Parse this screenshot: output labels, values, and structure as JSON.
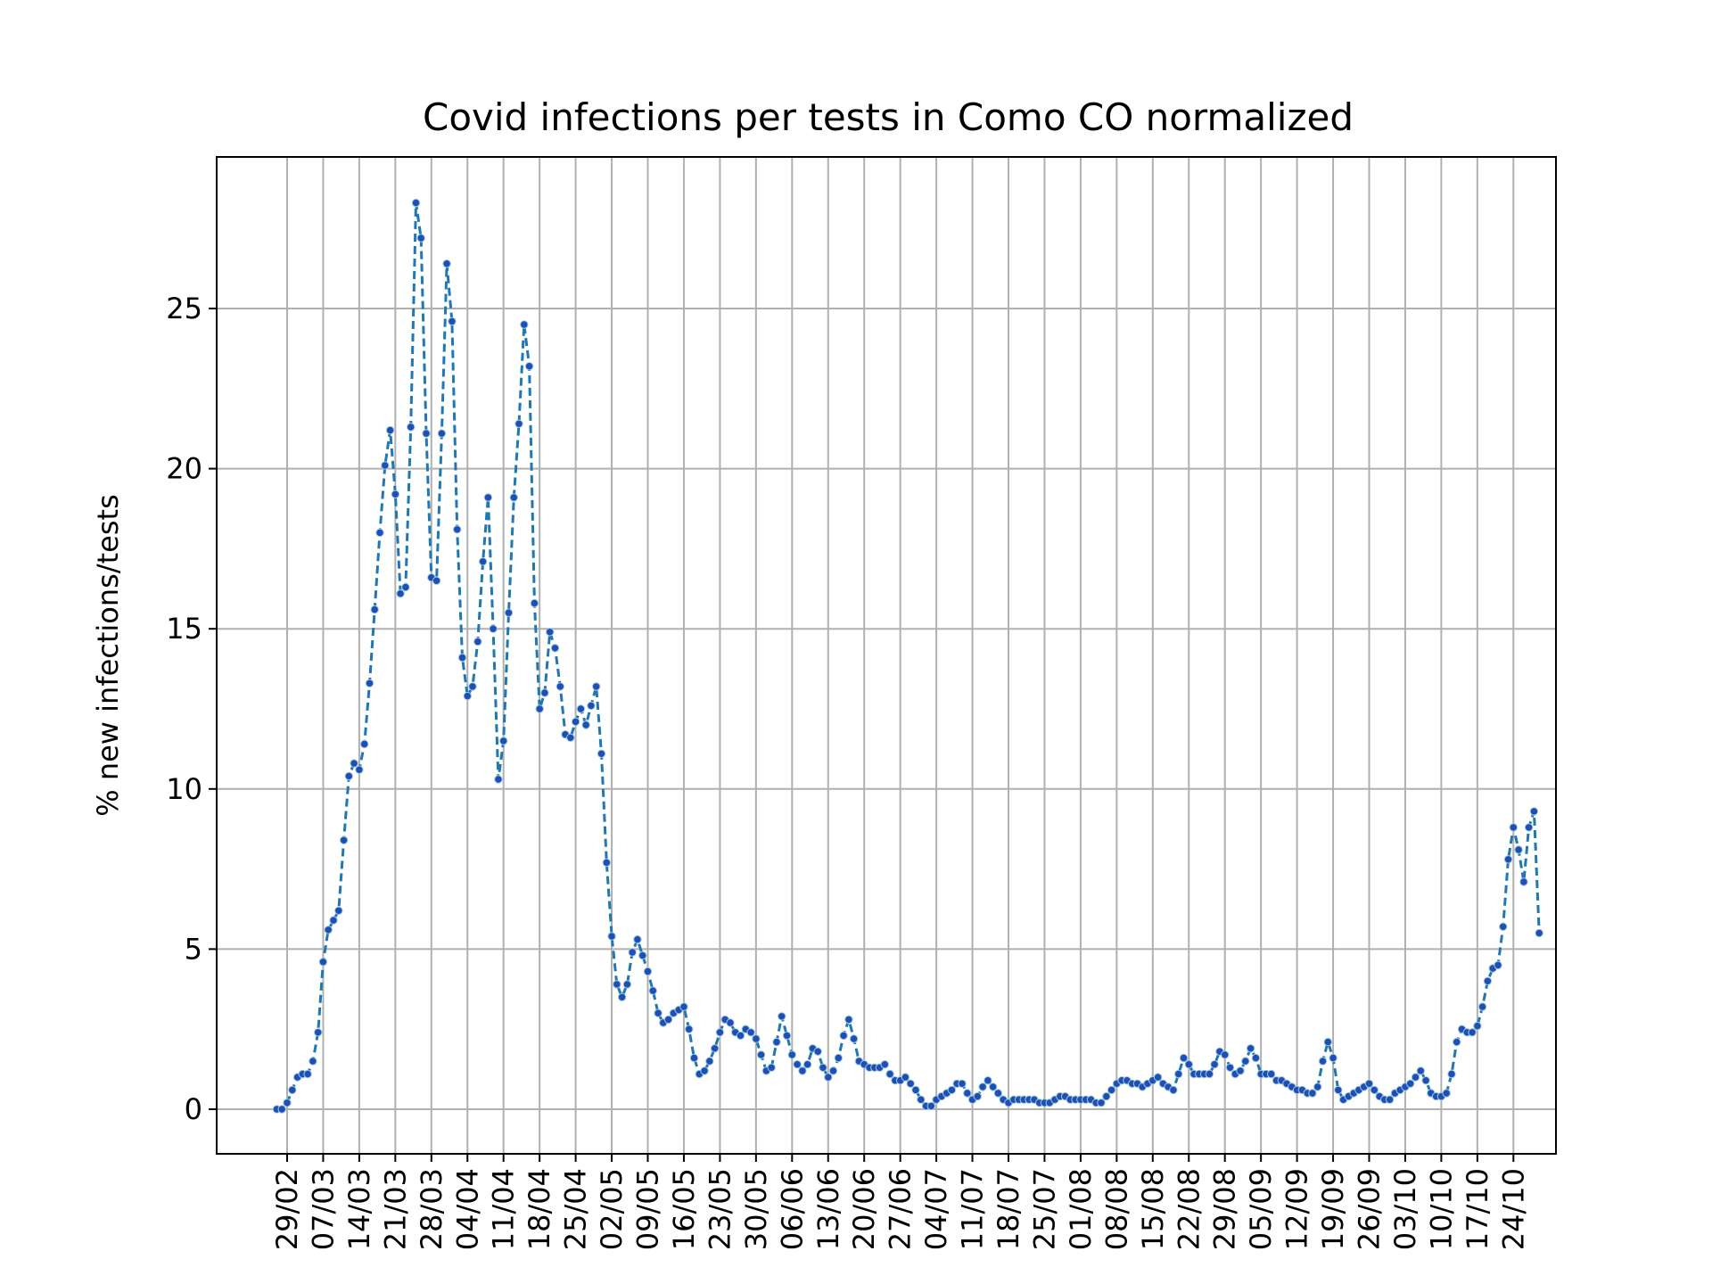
{
  "chart_data": {
    "type": "line",
    "title": "Covid infections per tests in Como CO normalized",
    "xlabel": "",
    "ylabel": "% new infections/tests",
    "x_tick_labels": [
      "29/02",
      "07/03",
      "14/03",
      "21/03",
      "28/03",
      "04/04",
      "11/04",
      "18/04",
      "25/04",
      "02/05",
      "09/05",
      "16/05",
      "23/05",
      "30/05",
      "06/06",
      "13/06",
      "20/06",
      "27/06",
      "04/07",
      "11/07",
      "18/07",
      "25/07",
      "01/08",
      "08/08",
      "15/08",
      "22/08",
      "29/08",
      "05/09",
      "12/09",
      "19/09",
      "26/09",
      "03/10",
      "10/10",
      "17/10",
      "24/10"
    ],
    "y_ticks": [
      0,
      5,
      10,
      15,
      20,
      25
    ],
    "ylim": [
      -1.4,
      29.8
    ],
    "x_start": "2020-02-27",
    "x_end": "2020-10-24",
    "grid": true,
    "line_color": "#1f77b4",
    "marker_color": "#1f4fb4",
    "series": [
      {
        "values": [
          0,
          0,
          0.2,
          0.6,
          1.0,
          1.1,
          1.1,
          1.5,
          2.4,
          4.6,
          5.6,
          5.9,
          6.2,
          8.4,
          10.4,
          10.8,
          10.6,
          11.4,
          13.3,
          15.6,
          18.0,
          20.1,
          21.2,
          19.2,
          16.1,
          16.3,
          21.3,
          28.3,
          27.2,
          21.1,
          16.6,
          16.5,
          21.1,
          26.4,
          24.6,
          18.1,
          14.1,
          12.9,
          13.2,
          14.6,
          17.1,
          19.1,
          15.0,
          10.3,
          11.5,
          15.5,
          19.1,
          21.4,
          24.5,
          23.2,
          15.8,
          12.5,
          13.0,
          14.9,
          14.4,
          13.2,
          11.7,
          11.6,
          12.1,
          12.5,
          12.0,
          12.6,
          13.2,
          11.1,
          7.7,
          5.4,
          3.9,
          3.5,
          3.9,
          4.9,
          5.3,
          4.8,
          4.3,
          3.7,
          3.0,
          2.7,
          2.8,
          3.0,
          3.1,
          3.2,
          2.5,
          1.6,
          1.1,
          1.2,
          1.5,
          1.9,
          2.4,
          2.8,
          2.7,
          2.4,
          2.3,
          2.5,
          2.4,
          2.2,
          1.7,
          1.2,
          1.3,
          2.1,
          2.9,
          2.3,
          1.7,
          1.4,
          1.2,
          1.4,
          1.9,
          1.8,
          1.3,
          1.0,
          1.2,
          1.6,
          2.3,
          2.8,
          2.2,
          1.5,
          1.4,
          1.3,
          1.3,
          1.3,
          1.4,
          1.1,
          0.9,
          0.9,
          1.0,
          0.8,
          0.6,
          0.3,
          0.1,
          0.1,
          0.3,
          0.4,
          0.5,
          0.6,
          0.8,
          0.8,
          0.5,
          0.3,
          0.4,
          0.7,
          0.9,
          0.7,
          0.5,
          0.3,
          0.2,
          0.3,
          0.3,
          0.3,
          0.3,
          0.3,
          0.2,
          0.2,
          0.2,
          0.3,
          0.4,
          0.4,
          0.3,
          0.3,
          0.3,
          0.3,
          0.3,
          0.2,
          0.2,
          0.4,
          0.6,
          0.8,
          0.9,
          0.9,
          0.8,
          0.8,
          0.7,
          0.8,
          0.9,
          1.0,
          0.8,
          0.7,
          0.6,
          1.1,
          1.6,
          1.4,
          1.1,
          1.1,
          1.1,
          1.1,
          1.4,
          1.8,
          1.7,
          1.3,
          1.1,
          1.2,
          1.5,
          1.9,
          1.6,
          1.1,
          1.1,
          1.1,
          0.9,
          0.9,
          0.8,
          0.7,
          0.6,
          0.6,
          0.5,
          0.5,
          0.7,
          1.5,
          2.1,
          1.6,
          0.6,
          0.3,
          0.4,
          0.5,
          0.6,
          0.7,
          0.8,
          0.6,
          0.4,
          0.3,
          0.3,
          0.5,
          0.6,
          0.7,
          0.8,
          1.0,
          1.2,
          0.9,
          0.5,
          0.4,
          0.4,
          0.5,
          1.1,
          2.1,
          2.5,
          2.4,
          2.4,
          2.6,
          3.2,
          4.0,
          4.4,
          4.5,
          5.7,
          7.8,
          8.8,
          8.1,
          7.1,
          8.8,
          9.3,
          5.5
        ]
      }
    ]
  }
}
